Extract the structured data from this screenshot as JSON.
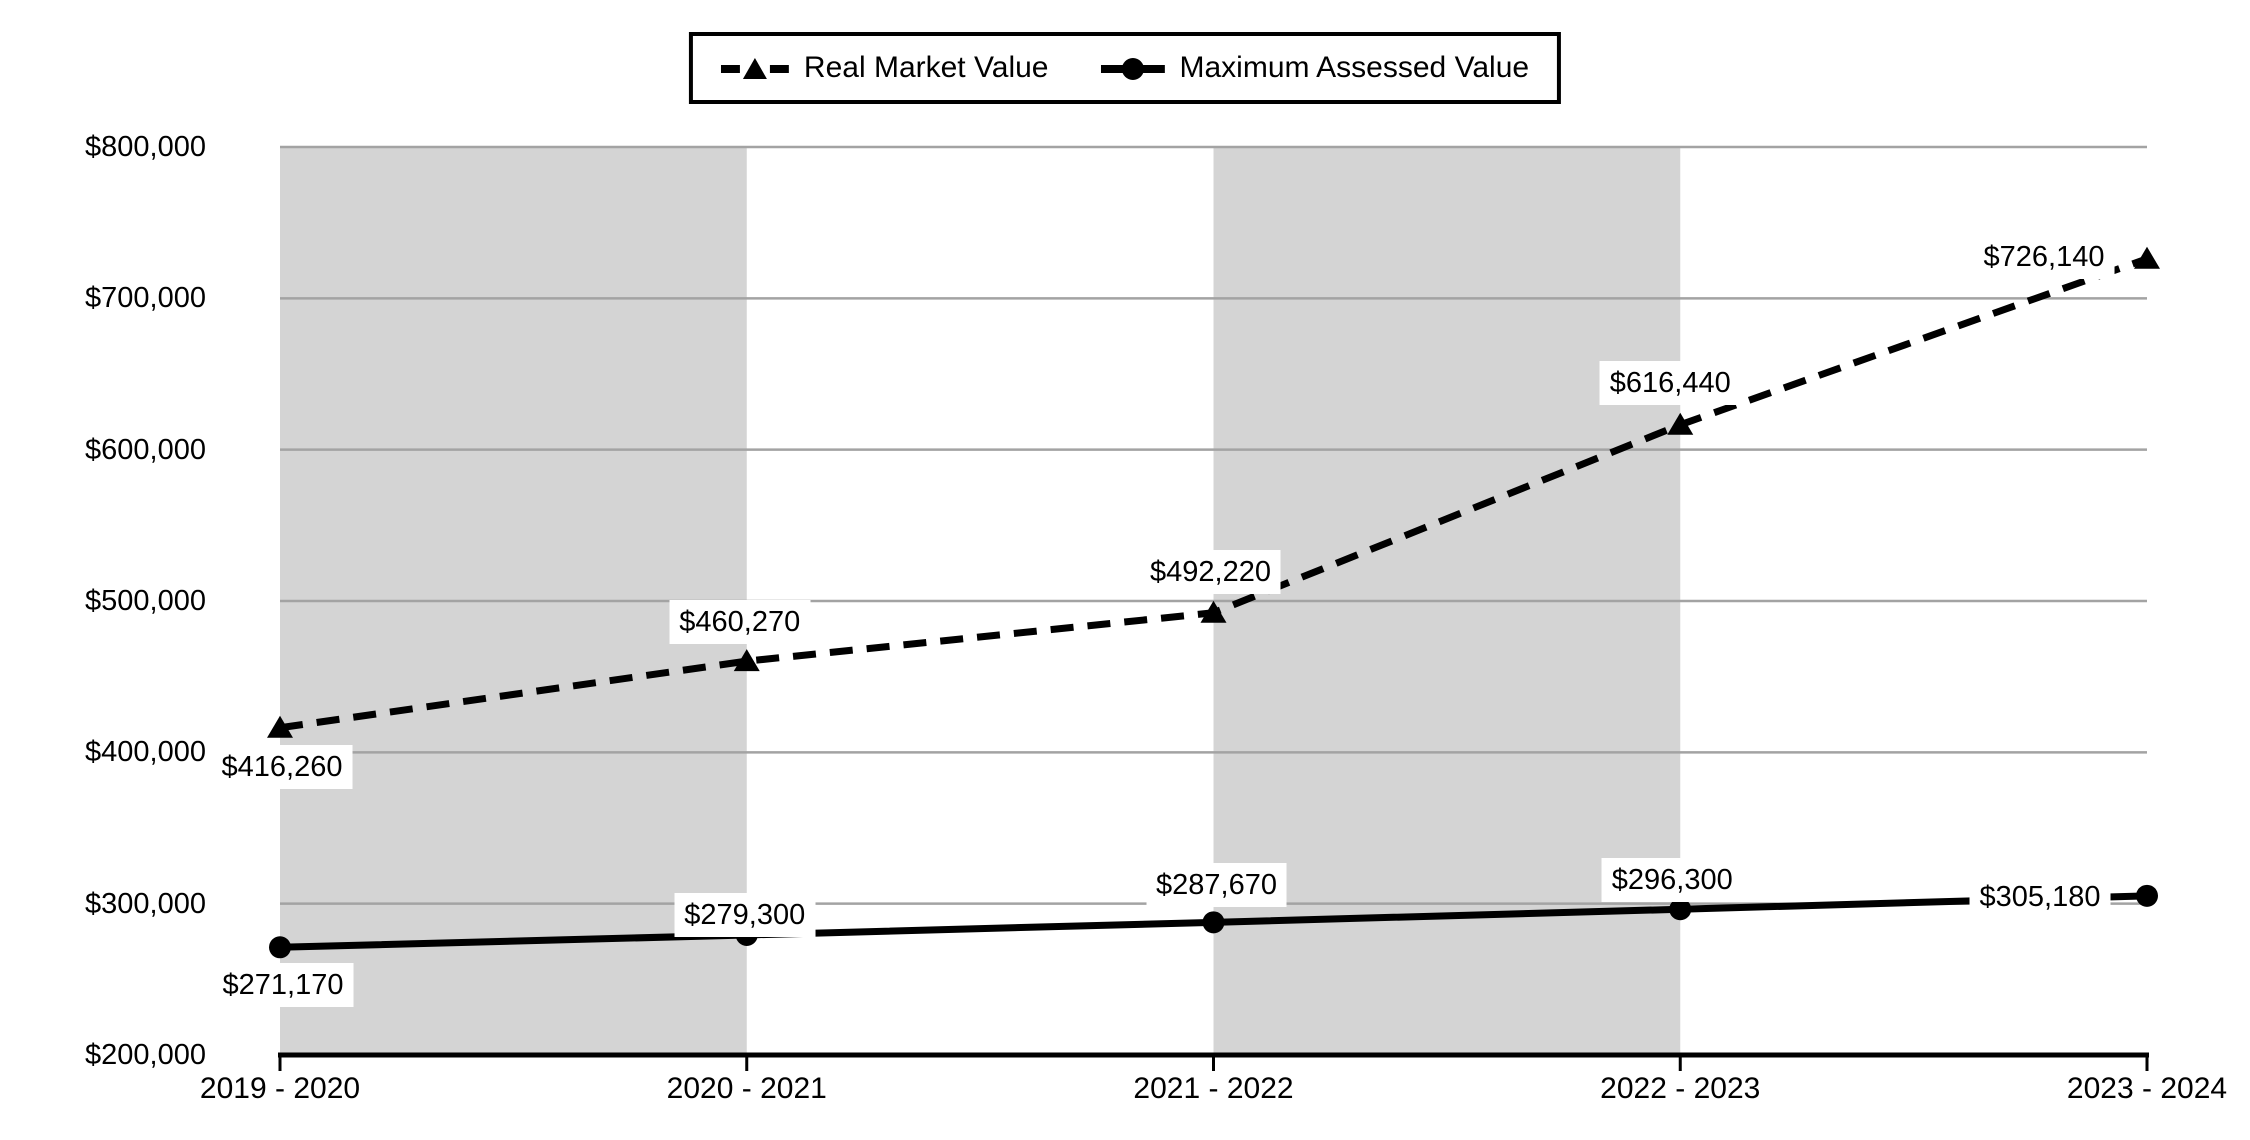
{
  "chart_data": {
    "type": "line",
    "title": "",
    "xlabel": "",
    "ylabel": "",
    "categories": [
      "2019 - 2020",
      "2020 - 2021",
      "2021 - 2022",
      "2022 - 2023",
      "2023 - 2024"
    ],
    "series": [
      {
        "name": "Real Market Value",
        "values": [
          416260,
          460270,
          492220,
          616440,
          726140
        ],
        "labels": [
          "$416,260",
          "$460,270",
          "$492,220",
          "$616,440",
          "$726,140"
        ],
        "line_style": "dashed",
        "marker": "triangle",
        "color": "#000000"
      },
      {
        "name": "Maximum Assessed Value",
        "values": [
          271170,
          279300,
          287670,
          296300,
          305180
        ],
        "labels": [
          "$271,170",
          "$279,300",
          "$287,670",
          "$296,300",
          "$305,180"
        ],
        "line_style": "solid",
        "marker": "circle",
        "color": "#000000"
      }
    ],
    "ylim": [
      200000,
      800000
    ],
    "y_tick_step": 100000,
    "y_tick_labels": [
      "$200,000",
      "$300,000",
      "$400,000",
      "$500,000",
      "$600,000",
      "$700,000",
      "$800,000"
    ],
    "grid": "horizontal",
    "legend_position": "top-center",
    "shaded_bands_category_ranges": [
      [
        0,
        1
      ],
      [
        2,
        3
      ]
    ],
    "colors": {
      "band": "#d4d4d4",
      "gridline": "#a3a3a3",
      "axis": "#000000",
      "background": "#ffffff",
      "label_background": "#ffffff",
      "text": "#000000"
    }
  }
}
